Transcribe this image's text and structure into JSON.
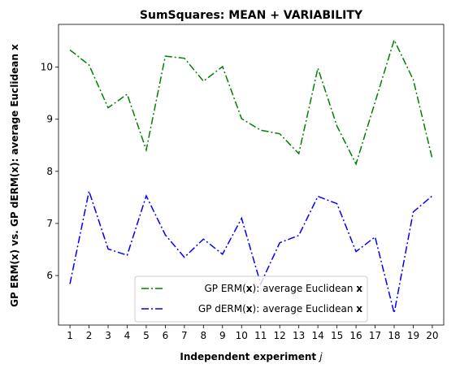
{
  "chart_data": {
    "type": "line",
    "title": "SumSquares: MEAN + VARIABILITY",
    "xlabel_text": "Independent experiment ",
    "xlabel_var": "j",
    "ylabel": "GP ERM(x) vs. GP dERM(x): average Euclidean x",
    "x": [
      1,
      2,
      3,
      4,
      5,
      6,
      7,
      8,
      9,
      10,
      11,
      12,
      13,
      14,
      15,
      16,
      17,
      18,
      19,
      20
    ],
    "xlim": [
      0.4,
      20.6
    ],
    "ylim": [
      5.05,
      10.82
    ],
    "yticks": [
      6,
      7,
      8,
      9,
      10
    ],
    "grid": false,
    "legend_position": "lower-center",
    "series": [
      {
        "name_pre": "   GP ERM(",
        "name_bold": "x",
        "name_mid": "): average Euclidean ",
        "name_end": "x",
        "color": "#008000",
        "style": "dashdot",
        "values": [
          10.33,
          10.04,
          9.22,
          9.48,
          8.41,
          10.21,
          10.17,
          9.73,
          10.01,
          9.01,
          8.79,
          8.72,
          8.34,
          9.98,
          8.87,
          8.14,
          9.33,
          10.52,
          9.76,
          8.24
        ]
      },
      {
        "name_pre": "GP dERM(",
        "name_bold": "x",
        "name_mid": "): average Euclidean ",
        "name_end": "x",
        "color": "#0000ff",
        "style": "dashdot",
        "values": [
          5.84,
          7.62,
          6.51,
          6.39,
          7.53,
          6.78,
          6.35,
          6.7,
          6.41,
          7.1,
          5.84,
          6.63,
          6.77,
          7.52,
          7.38,
          6.46,
          6.74,
          5.28,
          7.22,
          7.53
        ]
      }
    ]
  }
}
